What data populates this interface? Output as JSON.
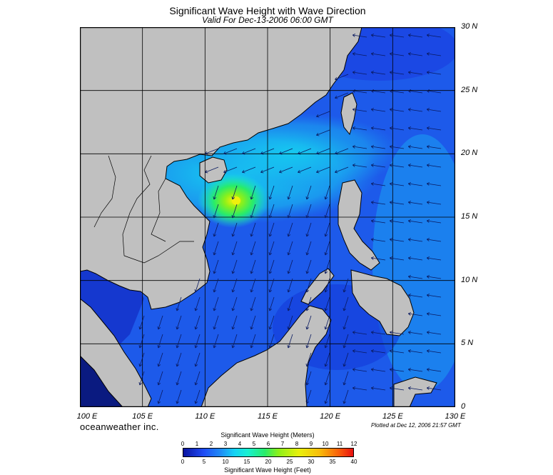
{
  "header": {
    "title": "Significant Wave Height with Wave Direction",
    "subtitle": "Valid For Dec-13-2006 06:00 GMT"
  },
  "map": {
    "lon_range": [
      100,
      130
    ],
    "lat_range": [
      0,
      30
    ],
    "lat_labels": [
      "30 N",
      "25 N",
      "20 N",
      "15 N",
      "10 N",
      "5 N",
      "0"
    ],
    "lat_values": [
      30,
      25,
      20,
      15,
      10,
      5,
      0
    ],
    "lon_labels": [
      "100 E",
      "105 E",
      "110 E",
      "115 E",
      "120 E",
      "125 E",
      "130 E"
    ],
    "lon_values": [
      100,
      105,
      110,
      115,
      120,
      125,
      130
    ],
    "land_color": "#c0c0c0",
    "ocean_color": "#1e50e6",
    "peak_wave": {
      "lon": 111.8,
      "lat": 16.8,
      "height_m": 4
    }
  },
  "footer": {
    "brand": "oceanweather inc.",
    "plotted": "Plotted at Dec 12, 2006 21:57 GMT"
  },
  "colorbar": {
    "meters_title": "Significant Wave Height (Meters)",
    "feet_title": "Significant Wave Height (Feet)",
    "meters_ticks": [
      "0",
      "1",
      "2",
      "3",
      "4",
      "5",
      "6",
      "7",
      "8",
      "9",
      "10",
      "11",
      "12"
    ],
    "feet_ticks": [
      "0",
      "5",
      "10",
      "15",
      "20",
      "25",
      "30",
      "35",
      "40"
    ]
  }
}
